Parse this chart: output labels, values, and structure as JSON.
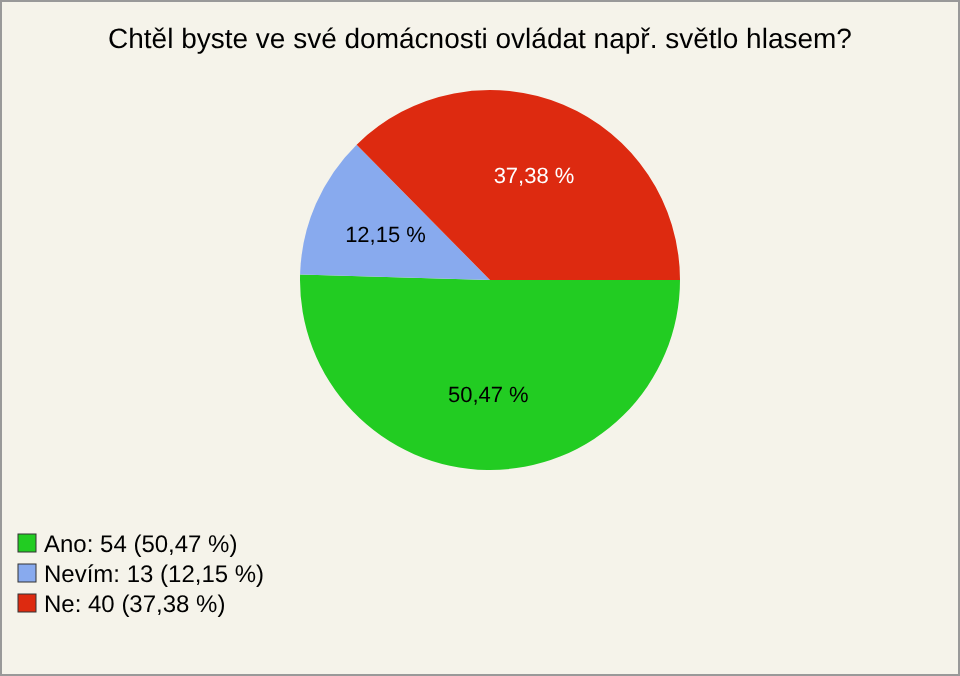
{
  "chart_data": {
    "type": "pie",
    "title": "Chtěl byste ve své domácnosti ovládat např. světlo hlasem?",
    "categories": [
      "Ano: 54 (50,47 %)",
      "Nevím: 13 (12,15 %)",
      "Ne: 40 (37,38 %)"
    ],
    "values": [
      50.47,
      12.15,
      37.38
    ],
    "value_labels": [
      "50,47 %",
      "12,15 %",
      "37,38 %"
    ],
    "colors": [
      "#22cc22",
      "#88aaee",
      "#dd2a10"
    ],
    "legend": "bottom left"
  }
}
